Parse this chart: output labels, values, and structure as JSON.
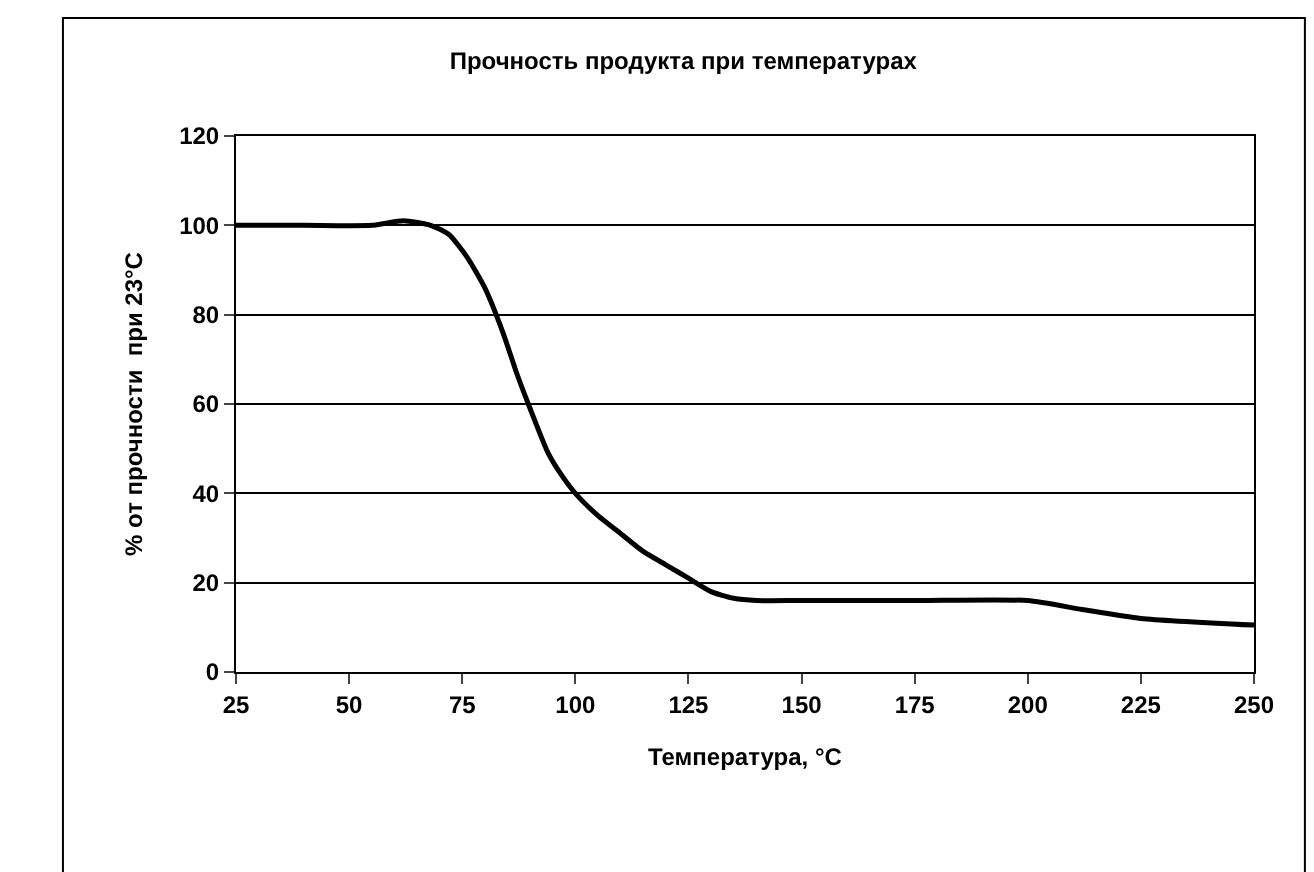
{
  "chart_data": {
    "type": "line",
    "title": "Прочность продукта при температурах",
    "xlabel": "Температура, °C",
    "ylabel": "% от прочности  при 23°C",
    "x": [
      25,
      40,
      55,
      62,
      68,
      72,
      76,
      80,
      84,
      87,
      90,
      94,
      97,
      100,
      105,
      110,
      115,
      120,
      125,
      130,
      135,
      140,
      150,
      175,
      200,
      212,
      225,
      250
    ],
    "series": [
      {
        "color": "#000000",
        "values": [
          100,
          100,
          100,
          101,
          100,
          98,
          93,
          86,
          76,
          67,
          59,
          49,
          44,
          40,
          35,
          31,
          27,
          24,
          21,
          18,
          16.5,
          16,
          16,
          16,
          16,
          14,
          12,
          10.5
        ]
      }
    ],
    "xlim": [
      25,
      250
    ],
    "xticks": [
      25,
      50,
      75,
      100,
      125,
      150,
      175,
      200,
      225,
      250
    ],
    "ylim": [
      0,
      120
    ],
    "yticks": [
      0,
      20,
      40,
      60,
      80,
      100,
      120
    ],
    "grid": "y",
    "marker": "none",
    "line_style": "solid"
  }
}
